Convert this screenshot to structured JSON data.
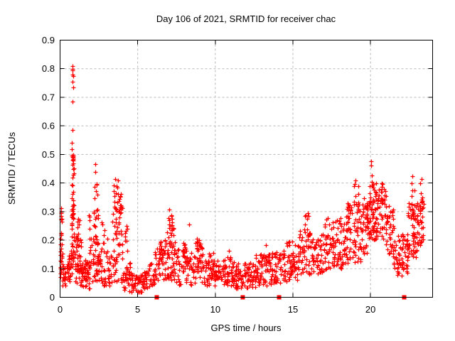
{
  "title": "Day 106 of 2021, SRMTID for receiver chac",
  "axes": {
    "xlabel": "GPS time / hours",
    "ylabel": "SRMTID / TECUs",
    "x_ticks": [
      [
        0,
        "0"
      ],
      [
        5,
        "5"
      ],
      [
        10,
        "10"
      ],
      [
        15,
        "15"
      ],
      [
        20,
        "20"
      ]
    ],
    "y_ticks": [
      [
        0,
        "0"
      ],
      [
        0.1,
        "0.1"
      ],
      [
        0.2,
        "0.2"
      ],
      [
        0.3,
        "0.3"
      ],
      [
        0.4,
        "0.4"
      ],
      [
        0.5,
        "0.5"
      ],
      [
        0.6,
        "0.6"
      ],
      [
        0.7,
        "0.7"
      ],
      [
        0.8,
        "0.8"
      ],
      [
        0.9,
        "0.9"
      ]
    ],
    "x_grid": [
      5,
      10,
      15,
      20
    ],
    "y_grid": [
      0.1,
      0.2,
      0.3,
      0.4,
      0.5,
      0.6,
      0.7,
      0.8
    ]
  },
  "colors": {
    "marker": "#ff0000",
    "grid": "#b8b8b8",
    "frame": "#000000",
    "background": "#ffffff"
  },
  "chart_data": {
    "type": "scatter",
    "title": "Day 106 of 2021, SRMTID for receiver chac",
    "xlabel": "GPS time / hours",
    "ylabel": "SRMTID / TECUs",
    "xlim": [
      0,
      24
    ],
    "ylim": [
      0,
      0.9
    ],
    "grid": true,
    "legend": "none",
    "marker": "plus",
    "marker_color": "#ff0000",
    "series": [
      {
        "name": "SRMTID",
        "clusters_format": "[x_start_hr, x_end_hr, y_min_TECU, y_max_TECU, point_count]",
        "clusters": [
          [
            0.0,
            0.15,
            0.05,
            0.22,
            22
          ],
          [
            0.02,
            0.12,
            0.22,
            0.35,
            10
          ],
          [
            0.15,
            0.55,
            0.04,
            0.12,
            28
          ],
          [
            0.55,
            0.75,
            0.05,
            0.15,
            18
          ],
          [
            0.72,
            0.92,
            0.06,
            0.3,
            30
          ],
          [
            0.74,
            0.9,
            0.27,
            0.5,
            28
          ],
          [
            0.76,
            0.88,
            0.44,
            0.55,
            8
          ],
          [
            0.95,
            1.35,
            0.05,
            0.22,
            40
          ],
          [
            1.05,
            1.25,
            0.18,
            0.28,
            8
          ],
          [
            1.3,
            1.9,
            0.03,
            0.13,
            55
          ],
          [
            1.85,
            2.05,
            0.1,
            0.33,
            14
          ],
          [
            2.05,
            2.5,
            0.05,
            0.16,
            25
          ],
          [
            2.1,
            2.45,
            0.15,
            0.33,
            22
          ],
          [
            2.2,
            2.4,
            0.33,
            0.42,
            6
          ],
          [
            2.5,
            3.3,
            0.04,
            0.17,
            45
          ],
          [
            2.6,
            3.05,
            0.17,
            0.28,
            8
          ],
          [
            3.3,
            4.05,
            0.05,
            0.2,
            28
          ],
          [
            3.35,
            4.0,
            0.2,
            0.33,
            25
          ],
          [
            3.45,
            3.95,
            0.28,
            0.4,
            22
          ],
          [
            4.05,
            4.6,
            0.02,
            0.12,
            32
          ],
          [
            4.15,
            4.35,
            0.12,
            0.25,
            8
          ],
          [
            4.55,
            5.4,
            0.012,
            0.08,
            48
          ],
          [
            5.4,
            6.1,
            0.03,
            0.12,
            38
          ],
          [
            6.1,
            6.6,
            0.05,
            0.18,
            32
          ],
          [
            6.45,
            6.6,
            0.14,
            0.22,
            6
          ],
          [
            6.6,
            7.5,
            0.06,
            0.2,
            55
          ],
          [
            6.9,
            7.4,
            0.16,
            0.26,
            18
          ],
          [
            7.0,
            7.3,
            0.24,
            0.325,
            10
          ],
          [
            7.5,
            8.6,
            0.04,
            0.17,
            60
          ],
          [
            7.9,
            8.15,
            0.12,
            0.21,
            10
          ],
          [
            8.6,
            9.2,
            0.05,
            0.19,
            38
          ],
          [
            8.8,
            9.05,
            0.15,
            0.23,
            8
          ],
          [
            9.2,
            10.6,
            0.04,
            0.13,
            80
          ],
          [
            9.55,
            9.95,
            0.11,
            0.16,
            8
          ],
          [
            10.6,
            11.2,
            0.04,
            0.14,
            42
          ],
          [
            11.2,
            12.6,
            0.03,
            0.12,
            85
          ],
          [
            12.6,
            13.6,
            0.04,
            0.15,
            60
          ],
          [
            13.2,
            13.5,
            0.12,
            0.19,
            8
          ],
          [
            13.6,
            14.6,
            0.05,
            0.17,
            55
          ],
          [
            14.6,
            15.4,
            0.06,
            0.2,
            55
          ],
          [
            15.4,
            16.2,
            0.08,
            0.24,
            52
          ],
          [
            15.7,
            16.05,
            0.22,
            0.33,
            8
          ],
          [
            16.2,
            17.4,
            0.08,
            0.22,
            70
          ],
          [
            17.0,
            17.35,
            0.2,
            0.28,
            6
          ],
          [
            17.4,
            18.4,
            0.1,
            0.27,
            68
          ],
          [
            17.9,
            18.1,
            0.24,
            0.3,
            5
          ],
          [
            18.4,
            19.4,
            0.12,
            0.34,
            80
          ],
          [
            18.85,
            19.25,
            0.32,
            0.4,
            8
          ],
          [
            19.4,
            20.0,
            0.15,
            0.35,
            52
          ],
          [
            19.95,
            20.15,
            0.18,
            0.44,
            16
          ],
          [
            20.1,
            21.0,
            0.2,
            0.4,
            88
          ],
          [
            21.0,
            21.5,
            0.14,
            0.33,
            42
          ],
          [
            21.5,
            22.4,
            0.07,
            0.22,
            66
          ],
          [
            22.4,
            23.0,
            0.14,
            0.33,
            50
          ],
          [
            22.6,
            22.85,
            0.28,
            0.405,
            10
          ],
          [
            23.0,
            23.45,
            0.18,
            0.34,
            36
          ],
          [
            23.15,
            23.4,
            0.3,
            0.4,
            8
          ]
        ],
        "outliers": [
          [
            0.8,
            0.81
          ],
          [
            0.78,
            0.8
          ],
          [
            0.82,
            0.795
          ],
          [
            0.8,
            0.78
          ],
          [
            0.84,
            0.775
          ],
          [
            0.81,
            0.755
          ],
          [
            0.83,
            0.735
          ],
          [
            0.8,
            0.685
          ],
          [
            0.79,
            0.585
          ],
          [
            2.29,
            0.465
          ],
          [
            2.26,
            0.44
          ],
          [
            3.55,
            0.415
          ],
          [
            3.72,
            0.41
          ],
          [
            8.32,
            0.255
          ],
          [
            10.9,
            0.163
          ],
          [
            19.02,
            0.41
          ],
          [
            20.05,
            0.475
          ],
          [
            20.02,
            0.46
          ],
          [
            22.7,
            0.425
          ],
          [
            23.28,
            0.415
          ]
        ]
      }
    ],
    "baseline_markers": {
      "shape": "filled-square",
      "color": "#ff0000",
      "y": 0,
      "x": [
        6.23,
        11.77,
        14.11,
        22.17
      ]
    }
  }
}
